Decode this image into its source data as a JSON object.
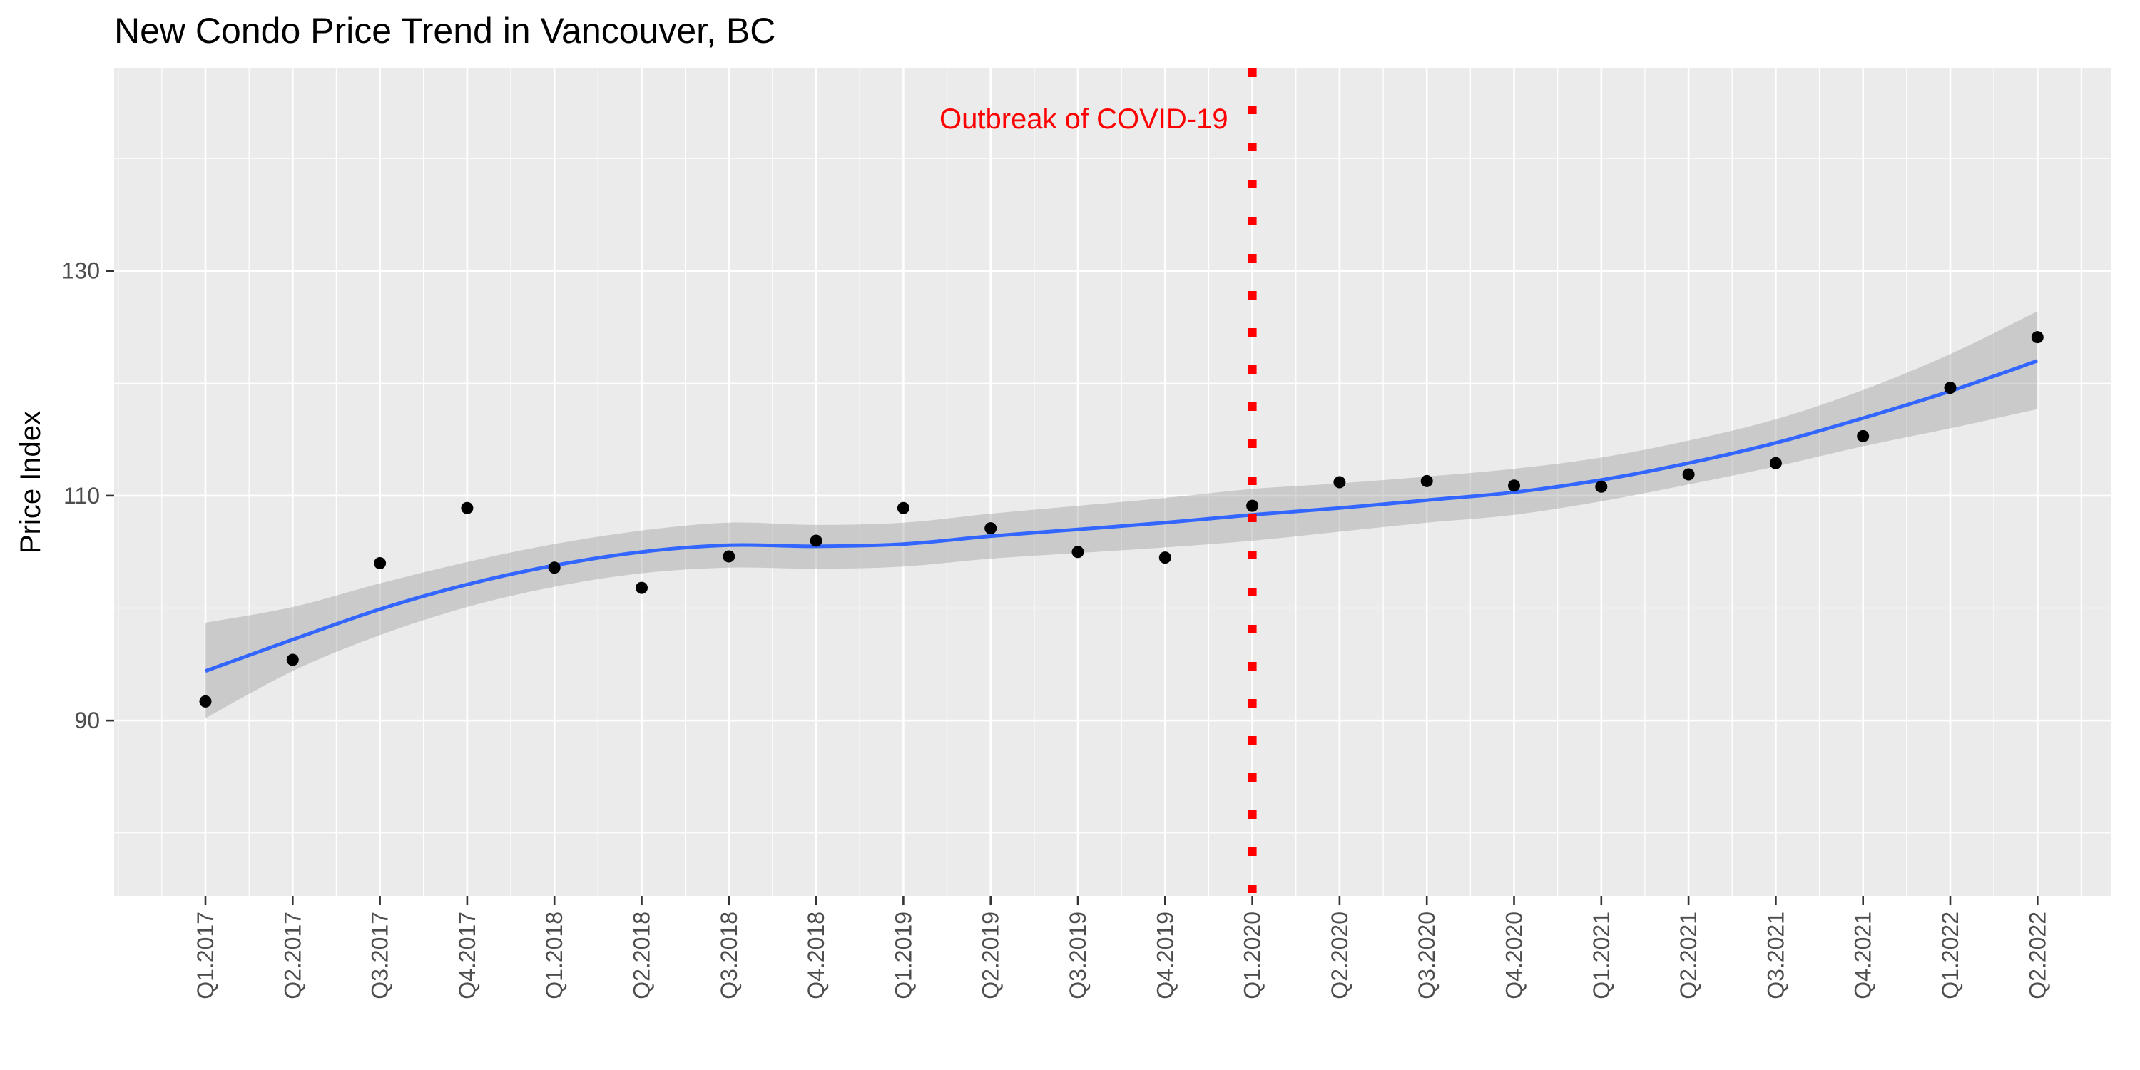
{
  "chart_data": {
    "type": "scatter",
    "title": "New Condo Price Trend in Vancouver, BC",
    "xlabel": "",
    "ylabel": "Price Index",
    "categories": [
      "Q1.2017",
      "Q2.2017",
      "Q3.2017",
      "Q4.2017",
      "Q1.2018",
      "Q2.2018",
      "Q3.2018",
      "Q4.2018",
      "Q1.2019",
      "Q2.2019",
      "Q3.2019",
      "Q4.2019",
      "Q1.2020",
      "Q2.2020",
      "Q3.2020",
      "Q4.2020",
      "Q1.2021",
      "Q2.2021",
      "Q3.2021",
      "Q4.2021",
      "Q1.2022",
      "Q2.2022"
    ],
    "values": [
      91.7,
      95.4,
      104.0,
      108.9,
      103.6,
      101.8,
      104.6,
      106.0,
      108.9,
      107.1,
      105.0,
      104.5,
      109.1,
      111.2,
      111.3,
      110.9,
      110.8,
      111.9,
      112.9,
      115.3,
      119.6,
      124.1
    ],
    "smooth": {
      "color": "#3366ff",
      "fit": [
        94.4,
        97.2,
        99.9,
        102.1,
        103.8,
        105.0,
        105.6,
        105.5,
        105.7,
        106.4,
        107.0,
        107.6,
        108.3,
        108.9,
        109.6,
        110.3,
        111.4,
        112.9,
        114.7,
        116.9,
        119.3,
        122.0
      ],
      "lower": [
        90.2,
        94.4,
        97.6,
        100.1,
        101.9,
        103.1,
        103.6,
        103.5,
        103.7,
        104.4,
        104.9,
        105.4,
        106.0,
        106.8,
        107.6,
        108.3,
        109.5,
        111.0,
        112.6,
        114.4,
        116.0,
        117.7
      ],
      "upper": [
        98.7,
        100.1,
        102.2,
        104.1,
        105.7,
        106.9,
        107.6,
        107.4,
        107.6,
        108.4,
        109.1,
        109.8,
        110.6,
        111.1,
        111.7,
        112.4,
        113.4,
        114.9,
        116.8,
        119.4,
        122.6,
        126.4
      ]
    },
    "ylim": [
      74.4,
      148
    ],
    "yticks": [
      90,
      110,
      130
    ],
    "grid": true,
    "point_color": "#000000",
    "vline": {
      "category": "Q1.2020",
      "color": "#ff0000",
      "style": "dotted"
    },
    "annotation": {
      "text": "Outbreak of COVID-19",
      "color": "#ff0000"
    },
    "panel_background": "#ebebeb"
  }
}
